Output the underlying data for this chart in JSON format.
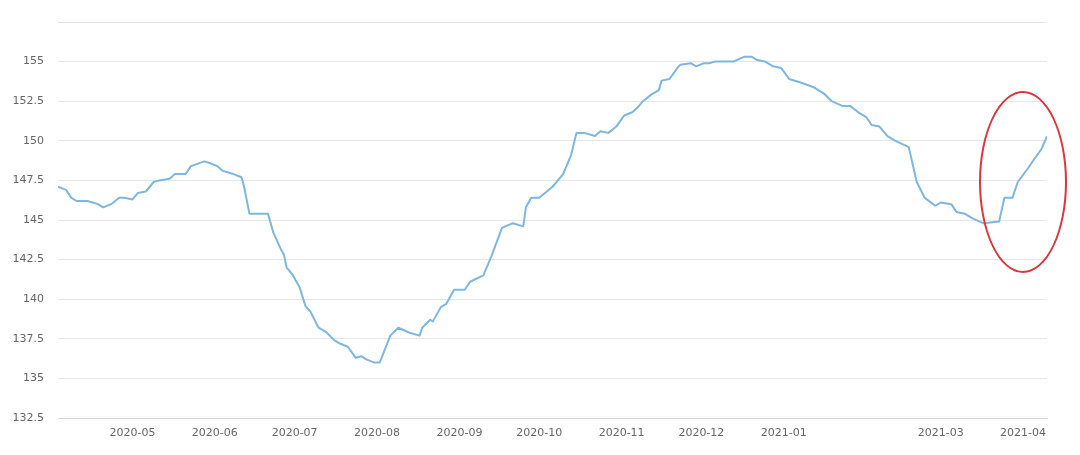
{
  "chart_data": {
    "type": "line",
    "x": [
      "2020-04-03",
      "2020-04-06",
      "2020-04-08",
      "2020-04-10",
      "2020-04-14",
      "2020-04-16",
      "2020-04-18",
      "2020-04-20",
      "2020-04-23",
      "2020-04-26",
      "2020-04-28",
      "2020-05-01",
      "2020-05-03",
      "2020-05-06",
      "2020-05-09",
      "2020-05-11",
      "2020-05-15",
      "2020-05-17",
      "2020-05-21",
      "2020-05-23",
      "2020-05-28",
      "2020-05-30",
      "2020-06-02",
      "2020-06-04",
      "2020-06-08",
      "2020-06-11",
      "2020-06-12",
      "2020-06-14",
      "2020-06-21",
      "2020-06-23",
      "2020-06-26",
      "2020-06-27",
      "2020-06-28",
      "2020-06-30",
      "2020-07-02",
      "2020-07-03",
      "2020-07-05",
      "2020-07-07",
      "2020-07-10",
      "2020-07-13",
      "2020-07-16",
      "2020-07-18",
      "2020-07-21",
      "2020-07-24",
      "2020-07-26",
      "2020-07-28",
      "2020-07-31",
      "2020-08-02",
      "2020-08-06",
      "2020-08-09",
      "2020-08-13",
      "2020-08-17",
      "2020-08-18",
      "2020-08-21",
      "2020-08-22",
      "2020-08-25",
      "2020-08-27",
      "2020-08-30",
      "2020-09-03",
      "2020-09-05",
      "2020-09-10",
      "2020-09-13",
      "2020-09-17",
      "2020-09-21",
      "2020-09-25",
      "2020-09-26",
      "2020-09-28",
      "2020-10-01",
      "2020-10-06",
      "2020-10-10",
      "2020-10-13",
      "2020-10-15",
      "2020-10-18",
      "2020-10-22",
      "2020-10-24",
      "2020-10-27",
      "2020-10-30",
      "2020-11-02",
      "2020-11-05",
      "2020-11-07",
      "2020-11-09",
      "2020-11-12",
      "2020-11-15",
      "2020-11-16",
      "2020-11-19",
      "2020-11-22",
      "2020-11-23",
      "2020-11-27",
      "2020-11-29",
      "2020-12-02",
      "2020-12-04",
      "2020-12-06",
      "2020-12-13",
      "2020-12-17",
      "2020-12-20",
      "2020-12-22",
      "2020-12-25",
      "2020-12-28",
      "2020-12-31",
      "2021-01-03",
      "2021-01-07",
      "2021-01-12",
      "2021-01-16",
      "2021-01-19",
      "2021-01-23",
      "2021-01-26",
      "2021-01-29",
      "2021-02-01",
      "2021-02-03",
      "2021-02-06",
      "2021-02-09",
      "2021-02-12",
      "2021-02-17",
      "2021-02-20",
      "2021-02-23",
      "2021-02-27",
      "2021-03-01",
      "2021-03-05",
      "2021-03-07",
      "2021-03-10",
      "2021-03-13",
      "2021-03-17",
      "2021-03-23",
      "2021-03-25",
      "2021-03-28",
      "2021-03-30",
      "2021-04-03",
      "2021-04-05",
      "2021-04-08",
      "2021-04-10"
    ],
    "series": [
      {
        "color": "#7fb6df",
        "values": [
          147.1,
          146.9,
          146.4,
          146.2,
          146.2,
          146.1,
          146.0,
          145.8,
          146.0,
          146.4,
          146.4,
          146.3,
          146.7,
          146.8,
          147.4,
          147.5,
          147.6,
          147.9,
          147.9,
          148.4,
          148.7,
          148.6,
          148.4,
          148.1,
          147.9,
          147.7,
          147.1,
          145.4,
          145.4,
          144.2,
          143.1,
          142.8,
          142.0,
          141.6,
          141.0,
          140.7,
          139.6,
          139.2,
          138.2,
          137.9,
          137.4,
          137.2,
          137.0,
          136.3,
          136.4,
          136.2,
          136.0,
          136.0,
          137.7,
          138.2,
          137.9,
          137.7,
          138.2,
          138.7,
          138.6,
          139.5,
          139.7,
          140.6,
          140.6,
          141.1,
          141.5,
          142.7,
          144.5,
          144.8,
          144.6,
          145.8,
          146.4,
          146.4,
          147.1,
          147.9,
          149.1,
          150.5,
          150.5,
          150.3,
          150.6,
          150.5,
          150.9,
          151.6,
          151.8,
          152.1,
          152.5,
          152.9,
          153.2,
          153.8,
          153.9,
          154.6,
          154.8,
          154.9,
          154.7,
          154.9,
          154.9,
          155.0,
          155.0,
          155.3,
          155.3,
          155.1,
          155.0,
          154.7,
          154.6,
          153.9,
          153.7,
          153.4,
          153.0,
          152.5,
          152.2,
          152.2,
          151.8,
          151.5,
          151.0,
          150.9,
          150.3,
          150.0,
          149.6,
          147.4,
          146.4,
          145.9,
          146.1,
          146.0,
          145.5,
          145.4,
          145.1,
          144.8,
          144.9,
          146.4,
          146.4,
          147.4,
          148.3,
          148.8,
          149.5,
          150.3
        ]
      }
    ],
    "xlim": [
      "2020-04-03",
      "2021-04-10"
    ],
    "xticks": [
      {
        "value": "2020-05-01",
        "label": "2020-05"
      },
      {
        "value": "2020-06-01",
        "label": "2020-06"
      },
      {
        "value": "2020-07-01",
        "label": "2020-07"
      },
      {
        "value": "2020-08-01",
        "label": "2020-08"
      },
      {
        "value": "2020-09-01",
        "label": "2020-09"
      },
      {
        "value": "2020-10-01",
        "label": "2020-10"
      },
      {
        "value": "2020-11-01",
        "label": "2020-11"
      },
      {
        "value": "2020-12-01",
        "label": "2020-12"
      },
      {
        "value": "2021-01-01",
        "label": "2021-01"
      },
      {
        "value": "2021-03-01",
        "label": "2021-03"
      },
      {
        "value": "2021-04-01",
        "label": "2021-04"
      }
    ],
    "ylim": [
      132.5,
      157.5
    ],
    "yticks": [
      132.5,
      135,
      137.5,
      140,
      142.5,
      145,
      147.5,
      150,
      152.5,
      155,
      {
        "value": 157.5,
        "label": null
      }
    ],
    "grid": "y",
    "legend": false,
    "marker": "none",
    "line_style": "solid"
  }
}
